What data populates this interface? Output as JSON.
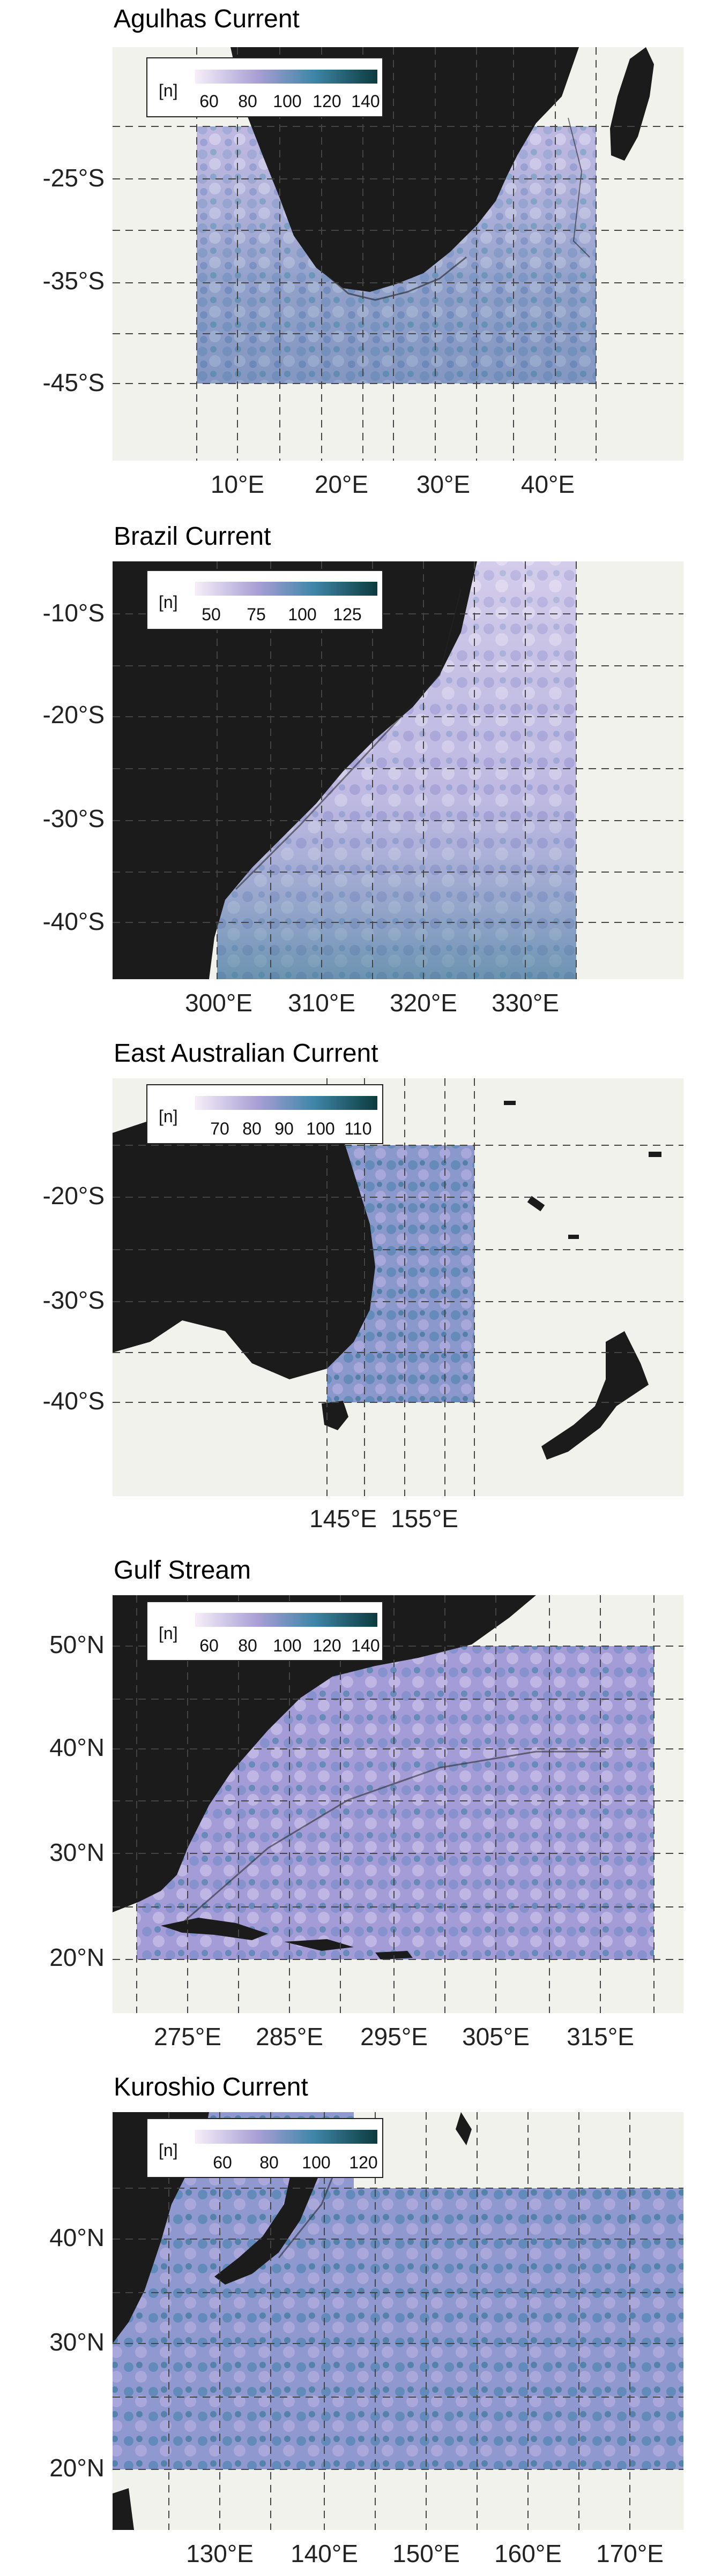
{
  "panels": [
    {
      "title": "Agulhas Current",
      "legend": {
        "unit": "[n]",
        "ticks": [
          "60",
          "80",
          "100",
          "120",
          "140"
        ],
        "range": [
          50,
          145
        ]
      },
      "lon_ticks": [
        "10°E",
        "20°E",
        "30°E",
        "40°E"
      ],
      "lat_ticks": [
        "-25°S",
        "-35°S",
        "-45°S"
      ]
    },
    {
      "title": "Brazil Current",
      "legend": {
        "unit": "[n]",
        "ticks": [
          "50",
          "75",
          "100",
          "125"
        ],
        "range": [
          40,
          140
        ]
      },
      "lon_ticks": [
        "300°E",
        "310°E",
        "320°E",
        "330°E"
      ],
      "lat_ticks": [
        "-10°S",
        "-20°S",
        "-30°S",
        "-40°S"
      ]
    },
    {
      "title": "East Australian Current",
      "legend": {
        "unit": "[n]",
        "ticks": [
          "70",
          "80",
          "90",
          "100",
          "110"
        ],
        "range": [
          60,
          118
        ]
      },
      "lon_ticks": [
        "145°E",
        "155°E"
      ],
      "lat_ticks": [
        "-20°S",
        "-30°S",
        "-40°S"
      ]
    },
    {
      "title": "Gulf Stream",
      "legend": {
        "unit": "[n]",
        "ticks": [
          "60",
          "80",
          "100",
          "120",
          "140"
        ],
        "range": [
          50,
          145
        ]
      },
      "lon_ticks": [
        "275°E",
        "285°E",
        "295°E",
        "305°E",
        "315°E"
      ],
      "lat_ticks": [
        "50°N",
        "40°N",
        "30°N",
        "20°N"
      ]
    },
    {
      "title": "Kuroshio Current",
      "legend": {
        "unit": "[n]",
        "ticks": [
          "60",
          "80",
          "100",
          "120"
        ],
        "range": [
          50,
          128
        ]
      },
      "lon_ticks": [
        "130°E",
        "140°E",
        "150°E",
        "160°E",
        "170°E"
      ],
      "lat_ticks": [
        "40°N",
        "30°N",
        "20°N"
      ]
    }
  ],
  "colors": {
    "land": "#1b1b1b",
    "ocean_background": "#f2f2ed",
    "data_low": "#f3e8f6",
    "data_mid": "#8f88c8",
    "data_high": "#1c6b78",
    "data_max": "#0b3b3e",
    "grid": "#444444"
  }
}
